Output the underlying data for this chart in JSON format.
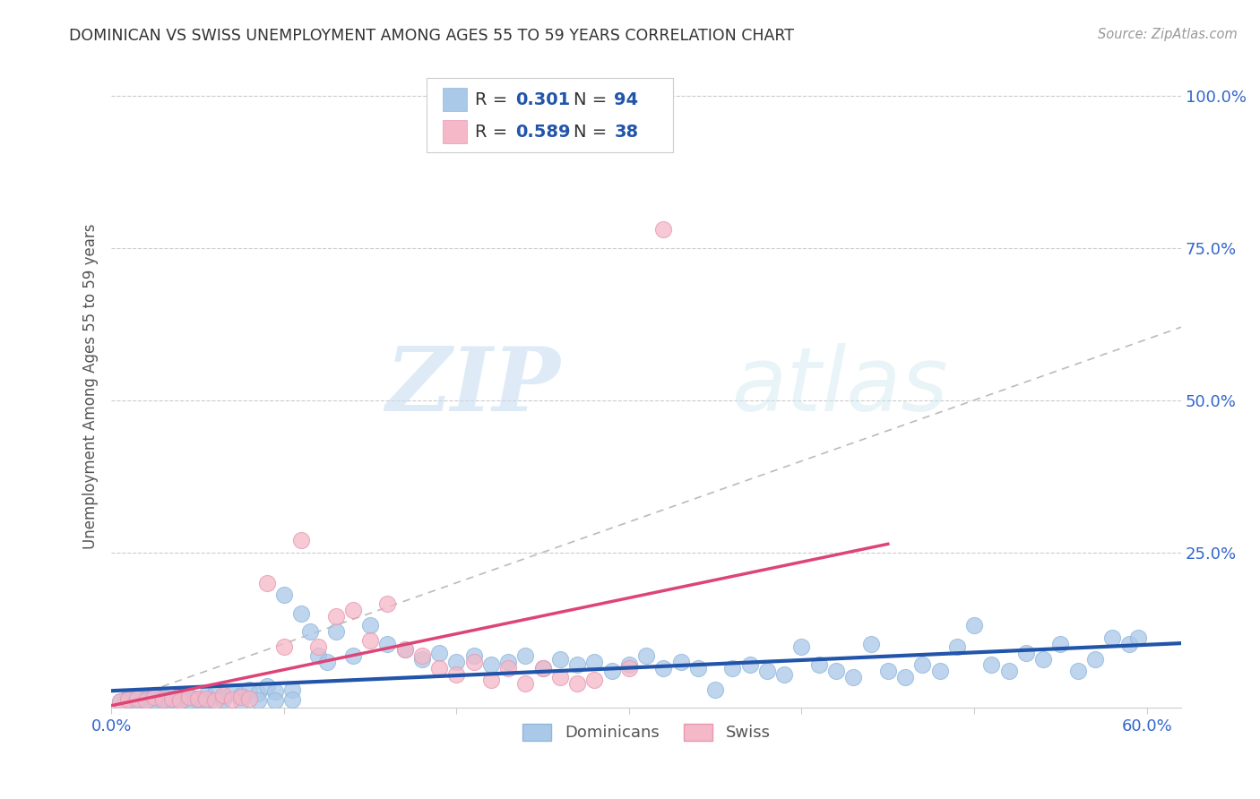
{
  "title": "DOMINICAN VS SWISS UNEMPLOYMENT AMONG AGES 55 TO 59 YEARS CORRELATION CHART",
  "source": "Source: ZipAtlas.com",
  "ylabel": "Unemployment Among Ages 55 to 59 years",
  "xlim": [
    0.0,
    0.62
  ],
  "ylim": [
    -0.005,
    1.05
  ],
  "dominicans_color": "#aac8e8",
  "dominicans_edge_color": "#90b8dc",
  "swiss_color": "#f4b8c8",
  "swiss_edge_color": "#e898b0",
  "dominicans_line_color": "#2255aa",
  "swiss_line_color": "#dd4477",
  "diagonal_color": "#bbbbbb",
  "background_color": "#ffffff",
  "watermark_zip": "ZIP",
  "watermark_atlas": "atlas",
  "legend_R_dominicans": "0.301",
  "legend_N_dominicans": "94",
  "legend_R_swiss": "0.589",
  "legend_N_swiss": "38",
  "dom_x": [
    0.005,
    0.008,
    0.01,
    0.012,
    0.015,
    0.018,
    0.02,
    0.022,
    0.025,
    0.028,
    0.03,
    0.032,
    0.035,
    0.038,
    0.04,
    0.042,
    0.045,
    0.048,
    0.05,
    0.052,
    0.055,
    0.058,
    0.06,
    0.065,
    0.07,
    0.075,
    0.08,
    0.085,
    0.09,
    0.095,
    0.1,
    0.105,
    0.11,
    0.115,
    0.12,
    0.125,
    0.13,
    0.14,
    0.15,
    0.16,
    0.17,
    0.18,
    0.19,
    0.2,
    0.21,
    0.22,
    0.23,
    0.24,
    0.25,
    0.26,
    0.27,
    0.28,
    0.29,
    0.3,
    0.31,
    0.32,
    0.33,
    0.34,
    0.35,
    0.36,
    0.37,
    0.38,
    0.39,
    0.4,
    0.41,
    0.42,
    0.43,
    0.44,
    0.45,
    0.46,
    0.47,
    0.48,
    0.49,
    0.5,
    0.51,
    0.52,
    0.53,
    0.54,
    0.55,
    0.56,
    0.57,
    0.58,
    0.59,
    0.595,
    0.015,
    0.025,
    0.035,
    0.045,
    0.055,
    0.065,
    0.075,
    0.085,
    0.095,
    0.105
  ],
  "dom_y": [
    0.005,
    0.008,
    0.01,
    0.005,
    0.012,
    0.008,
    0.01,
    0.006,
    0.015,
    0.009,
    0.012,
    0.007,
    0.01,
    0.006,
    0.015,
    0.008,
    0.012,
    0.009,
    0.01,
    0.007,
    0.015,
    0.008,
    0.018,
    0.012,
    0.02,
    0.015,
    0.025,
    0.018,
    0.03,
    0.022,
    0.18,
    0.025,
    0.15,
    0.12,
    0.08,
    0.07,
    0.12,
    0.08,
    0.13,
    0.1,
    0.09,
    0.075,
    0.085,
    0.07,
    0.08,
    0.065,
    0.07,
    0.08,
    0.06,
    0.075,
    0.065,
    0.07,
    0.055,
    0.065,
    0.08,
    0.06,
    0.07,
    0.06,
    0.025,
    0.06,
    0.065,
    0.055,
    0.05,
    0.095,
    0.065,
    0.055,
    0.045,
    0.1,
    0.055,
    0.045,
    0.065,
    0.055,
    0.095,
    0.13,
    0.065,
    0.055,
    0.085,
    0.075,
    0.1,
    0.055,
    0.075,
    0.11,
    0.1,
    0.11,
    0.005,
    0.006,
    0.005,
    0.007,
    0.006,
    0.008,
    0.005,
    0.007,
    0.006,
    0.008
  ],
  "swiss_x": [
    0.005,
    0.01,
    0.015,
    0.02,
    0.025,
    0.03,
    0.035,
    0.04,
    0.045,
    0.05,
    0.055,
    0.06,
    0.065,
    0.07,
    0.075,
    0.08,
    0.09,
    0.1,
    0.11,
    0.12,
    0.13,
    0.14,
    0.15,
    0.16,
    0.17,
    0.18,
    0.19,
    0.2,
    0.21,
    0.22,
    0.23,
    0.24,
    0.25,
    0.26,
    0.27,
    0.28,
    0.3,
    0.32
  ],
  "swiss_y": [
    0.005,
    0.008,
    0.01,
    0.006,
    0.012,
    0.008,
    0.01,
    0.006,
    0.012,
    0.009,
    0.01,
    0.006,
    0.015,
    0.008,
    0.012,
    0.009,
    0.2,
    0.095,
    0.27,
    0.095,
    0.145,
    0.155,
    0.105,
    0.165,
    0.09,
    0.08,
    0.06,
    0.05,
    0.07,
    0.04,
    0.06,
    0.035,
    0.06,
    0.045,
    0.035,
    0.04,
    0.06,
    0.78
  ]
}
